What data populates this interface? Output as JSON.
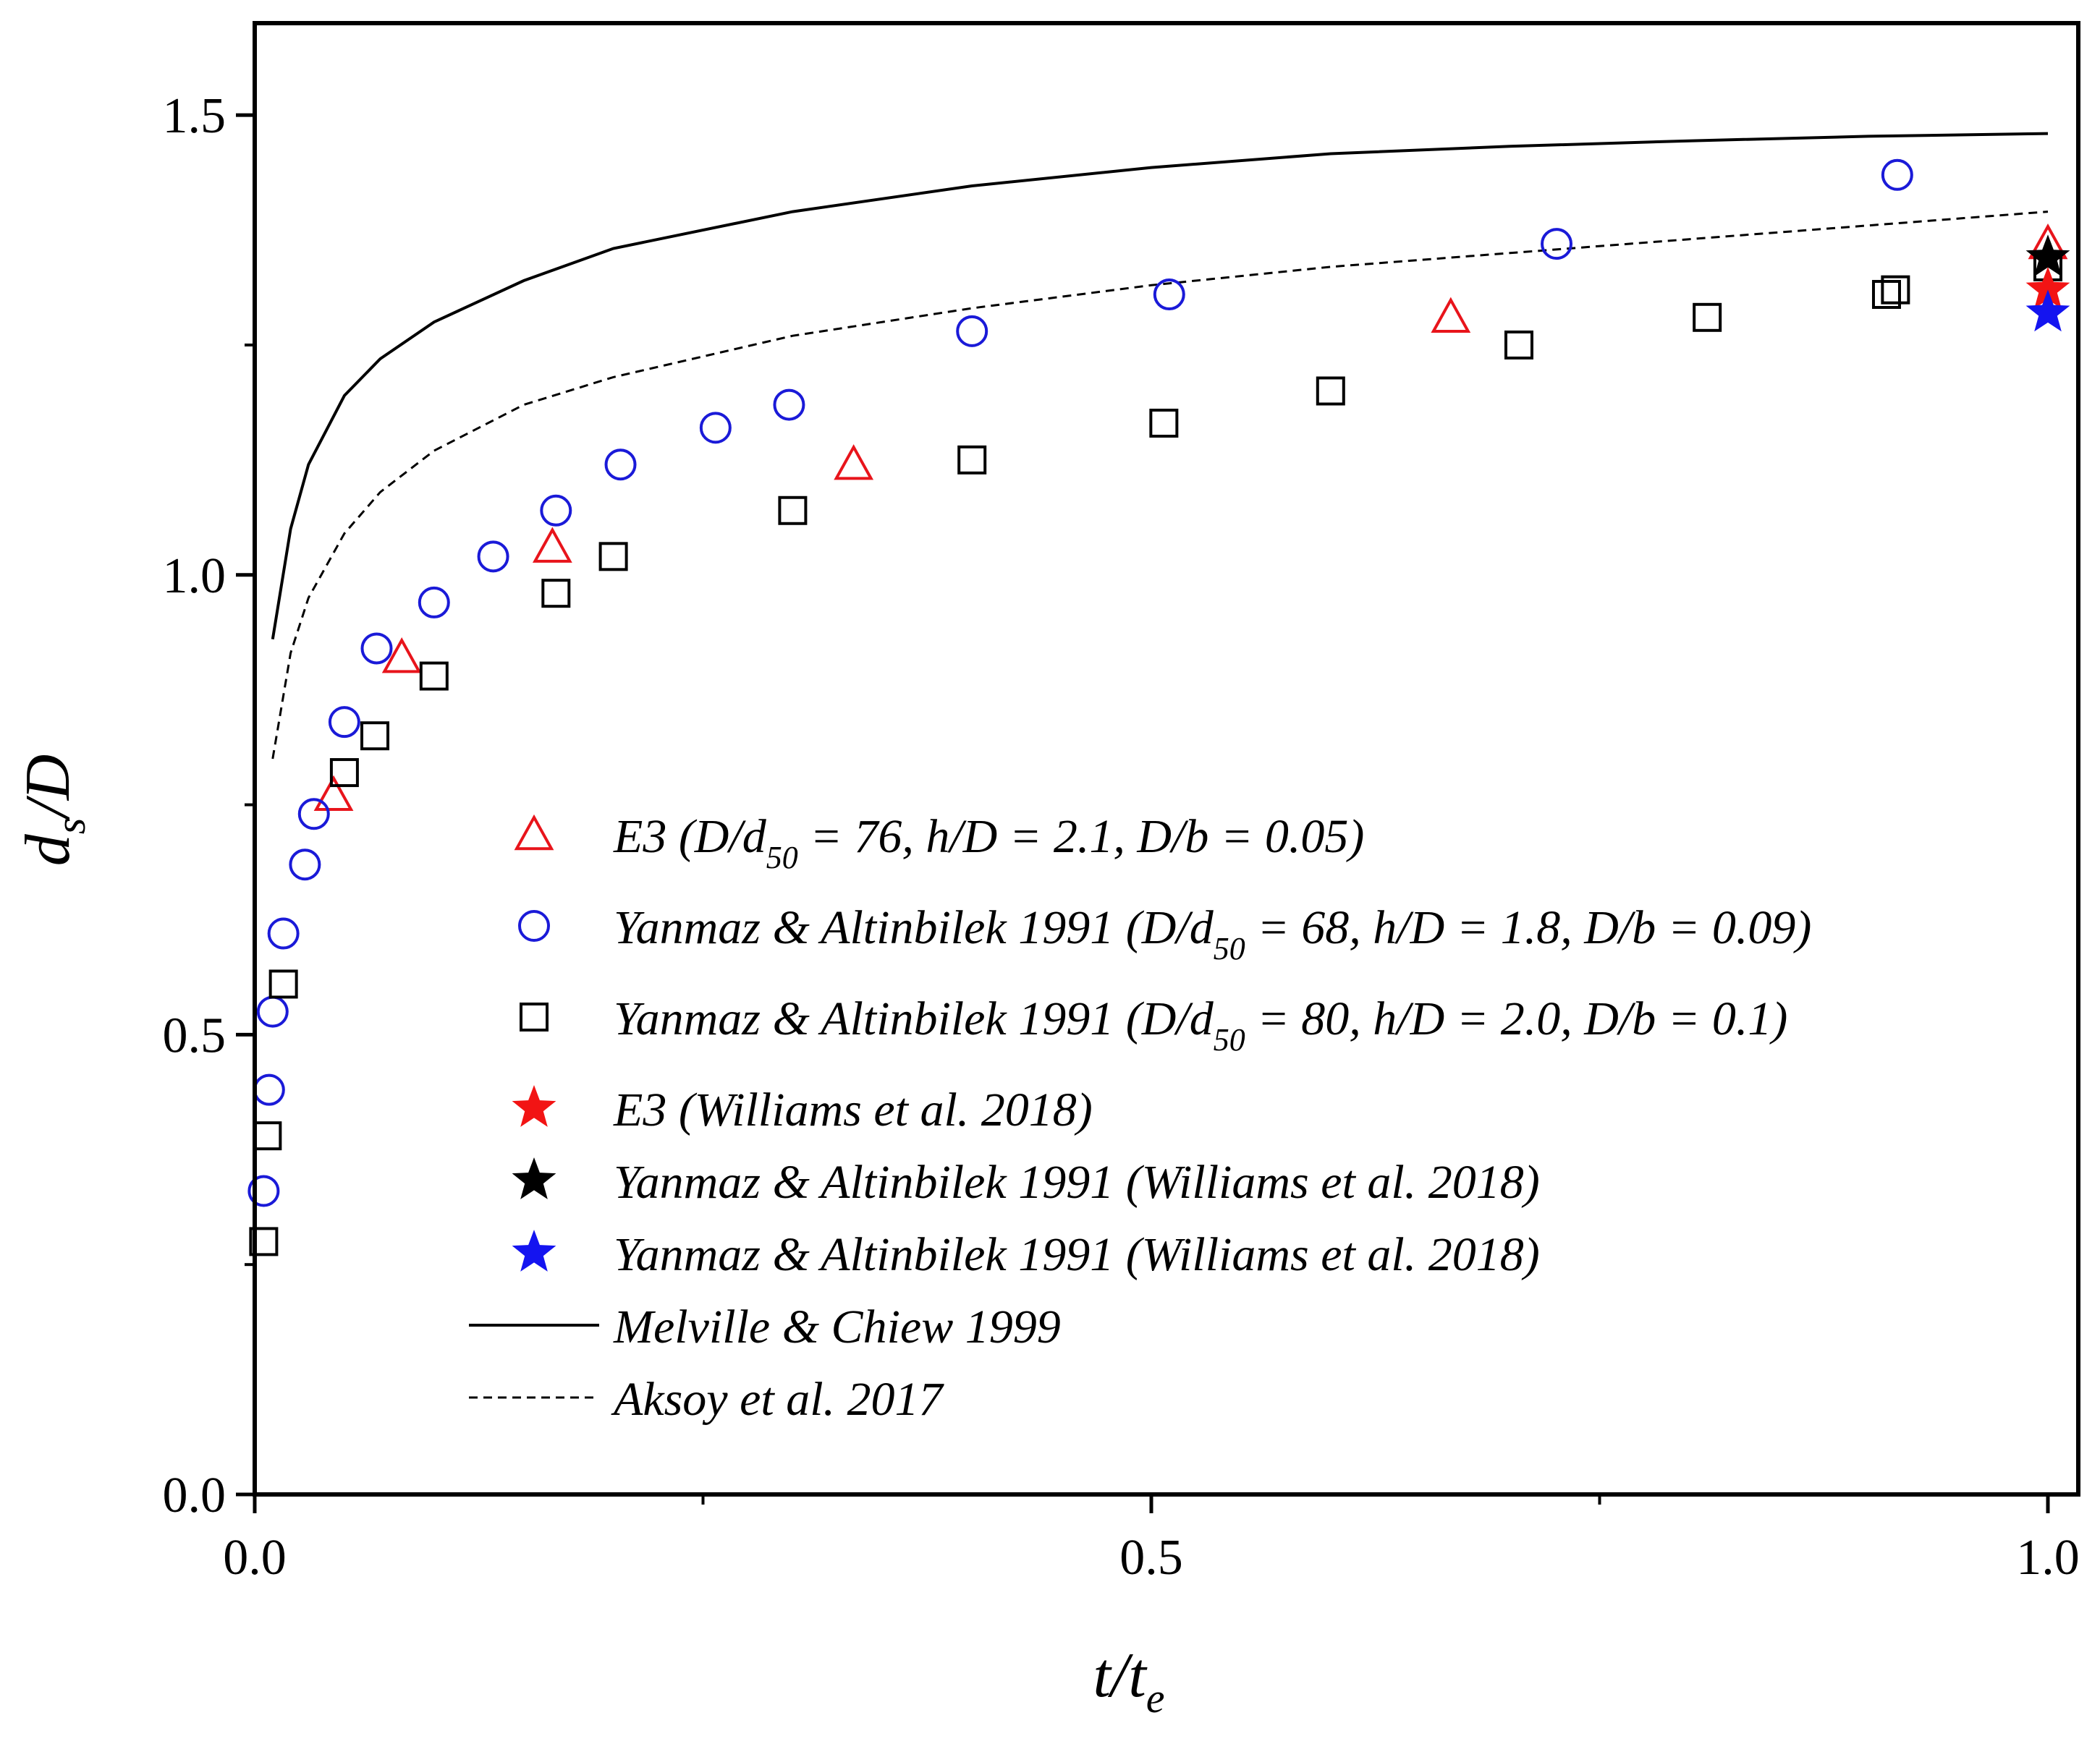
{
  "chart_data": {
    "type": "scatter",
    "title": "",
    "xlabel": {
      "main": "t/t",
      "sub": "e"
    },
    "ylabel": {
      "main": "d",
      "sub": "s",
      "tail": "/D"
    },
    "xlim": [
      0.0,
      1.02
    ],
    "ylim": [
      0.0,
      1.6
    ],
    "xticks": [
      0.0,
      0.5,
      1.0
    ],
    "xtick_labels": [
      "0.0",
      "0.5",
      "1.0"
    ],
    "xminor": [
      0.25,
      0.75
    ],
    "yticks": [
      0.0,
      0.5,
      1.0,
      1.5
    ],
    "ytick_labels": [
      "0.0",
      "0.5",
      "1.0",
      "1.5"
    ],
    "yminor": [
      0.25,
      0.75,
      1.25
    ],
    "grid": false,
    "legend_position": "center",
    "series": [
      {
        "name": "E3",
        "label_parts": [
          "E3 (D/d",
          "50",
          " = 76, h/D = 2.1, D/b = 0.05)"
        ],
        "marker": "triangle",
        "color": "#e8141b",
        "x": [
          0.044,
          0.082,
          0.166,
          0.334,
          0.667,
          1.0
        ],
        "y": [
          0.76,
          0.91,
          1.03,
          1.12,
          1.28,
          1.36
        ]
      },
      {
        "name": "Yanmaz & Altinbilek 1991 (D/d50 = 68)",
        "label_parts": [
          "Yanmaz & Altinbilek 1991 (D/d",
          "50",
          " = 68, h/D = 1.8, D/b = 0.09)"
        ],
        "marker": "circle",
        "color": "#1a1ad8",
        "x": [
          0.005,
          0.008,
          0.01,
          0.016,
          0.028,
          0.033,
          0.05,
          0.068,
          0.1,
          0.133,
          0.168,
          0.204,
          0.257,
          0.298,
          0.4,
          0.51,
          0.726,
          0.916
        ],
        "y": [
          0.33,
          0.44,
          0.525,
          0.61,
          0.685,
          0.74,
          0.84,
          0.92,
          0.97,
          1.02,
          1.07,
          1.12,
          1.16,
          1.185,
          1.265,
          1.305,
          1.36,
          1.435
        ]
      },
      {
        "name": "Yanmaz & Altinbilek 1991 (D/d50 = 80)",
        "label_parts": [
          "Yanmaz & Altinbilek 1991 (D/d",
          "50",
          " = 80, h/D = 2.0, D/b = 0.1)"
        ],
        "marker": "square",
        "color": "#000000",
        "x": [
          0.005,
          0.007,
          0.016,
          0.05,
          0.067,
          0.1,
          0.168,
          0.2,
          0.3,
          0.4,
          0.507,
          0.6,
          0.705,
          0.81,
          0.915,
          0.91,
          1.0
        ],
        "y": [
          0.275,
          0.39,
          0.555,
          0.785,
          0.825,
          0.89,
          0.98,
          1.02,
          1.07,
          1.125,
          1.165,
          1.2,
          1.25,
          1.28,
          1.31,
          1.305,
          1.335
        ]
      },
      {
        "name": "E3 (Williams et al. 2018)",
        "label_parts": [
          "E3 (Williams et al. 2018)"
        ],
        "marker": "star",
        "color": "#f21414",
        "x": [
          1.0
        ],
        "y": [
          1.31
        ]
      },
      {
        "name": "Yanmaz & Altinbilek 1991 (Williams et al. 2018) black",
        "label_parts": [
          "Yanmaz & Altinbilek 1991 (Williams et al. 2018)"
        ],
        "marker": "star",
        "color": "#000000",
        "x": [
          1.0
        ],
        "y": [
          1.345
        ]
      },
      {
        "name": "Yanmaz & Altinbilek 1991 (Williams et al. 2018) blue",
        "label_parts": [
          "Yanmaz & Altinbilek 1991 (Williams et al. 2018)"
        ],
        "marker": "star",
        "color": "#1414f0",
        "x": [
          1.0
        ],
        "y": [
          1.285
        ]
      }
    ],
    "lines": [
      {
        "name": "Melville & Chiew 1999",
        "label_parts": [
          "Melville & Chiew 1999"
        ],
        "style": "solid",
        "color": "#000000",
        "x": [
          0.01,
          0.02,
          0.03,
          0.05,
          0.07,
          0.1,
          0.15,
          0.2,
          0.3,
          0.4,
          0.5,
          0.6,
          0.7,
          0.8,
          0.9,
          1.0
        ],
        "y": [
          0.93,
          1.05,
          1.12,
          1.195,
          1.235,
          1.275,
          1.32,
          1.355,
          1.395,
          1.423,
          1.443,
          1.458,
          1.466,
          1.472,
          1.477,
          1.48
        ]
      },
      {
        "name": "Aksoy et al. 2017",
        "label_parts": [
          "Aksoy et al. 2017"
        ],
        "style": "dashed",
        "color": "#000000",
        "x": [
          0.01,
          0.02,
          0.03,
          0.05,
          0.07,
          0.1,
          0.15,
          0.2,
          0.3,
          0.4,
          0.5,
          0.6,
          0.7,
          0.8,
          0.9,
          1.0
        ],
        "y": [
          0.8,
          0.915,
          0.975,
          1.045,
          1.09,
          1.135,
          1.185,
          1.215,
          1.26,
          1.29,
          1.315,
          1.335,
          1.35,
          1.365,
          1.38,
          1.395
        ]
      }
    ]
  }
}
